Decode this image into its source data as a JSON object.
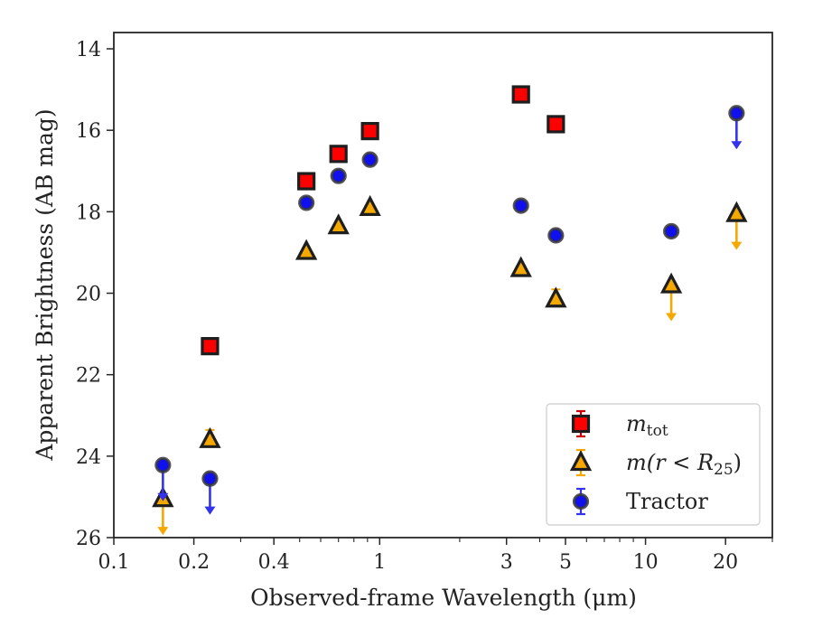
{
  "chart_data": {
    "type": "scatter",
    "xlabel": "Observed-frame Wavelength (μm)",
    "ylabel": "Apparent Brightness (AB mag)",
    "xscale": "log",
    "xlim": [
      0.1,
      30
    ],
    "ylim": [
      26,
      13.6
    ],
    "y_inverted": true,
    "x_ticks": [
      0.1,
      0.2,
      0.4,
      1,
      3,
      5,
      10,
      20
    ],
    "x_tick_labels": [
      "0.1",
      "0.2",
      "0.4",
      "1",
      "3",
      "5",
      "10",
      "20"
    ],
    "y_ticks": [
      14,
      16,
      18,
      20,
      22,
      24,
      26
    ],
    "y_tick_labels": [
      "14",
      "16",
      "18",
      "20",
      "22",
      "24",
      "26"
    ],
    "legend_position": "lower-right",
    "series": [
      {
        "name": "m_tot",
        "label_main": "m",
        "label_sub": "tot",
        "marker": "square",
        "color": "#ff0000",
        "errcolor": "#cc0000",
        "points": [
          {
            "x": 0.23,
            "y": 21.3,
            "upper_limit": false
          },
          {
            "x": 0.53,
            "y": 17.25,
            "upper_limit": false
          },
          {
            "x": 0.7,
            "y": 16.58,
            "upper_limit": false
          },
          {
            "x": 0.92,
            "y": 16.02,
            "upper_limit": false
          },
          {
            "x": 3.4,
            "y": 15.12,
            "upper_limit": false
          },
          {
            "x": 4.6,
            "y": 15.85,
            "upper_limit": false
          }
        ]
      },
      {
        "name": "m(r < R_25)",
        "label_main": "m(r < R",
        "label_sub": "25",
        "label_tail": ")",
        "marker": "triangle",
        "color": "#f5a800",
        "errcolor": "#f5a800",
        "points": [
          {
            "x": 0.153,
            "y": 25.05,
            "upper_limit": true
          },
          {
            "x": 0.23,
            "y": 23.6,
            "upper_limit": false
          },
          {
            "x": 0.53,
            "y": 18.98,
            "upper_limit": false
          },
          {
            "x": 0.7,
            "y": 18.35,
            "upper_limit": false
          },
          {
            "x": 0.92,
            "y": 17.9,
            "upper_limit": false
          },
          {
            "x": 3.4,
            "y": 19.4,
            "upper_limit": false
          },
          {
            "x": 4.6,
            "y": 20.15,
            "upper_limit": false
          },
          {
            "x": 12.5,
            "y": 19.8,
            "upper_limit": true
          },
          {
            "x": 22.0,
            "y": 18.05,
            "upper_limit": true
          }
        ]
      },
      {
        "name": "Tractor",
        "label_main": "Tractor",
        "marker": "circle",
        "color": "#1010ee",
        "errcolor": "#3333ee",
        "points": [
          {
            "x": 0.153,
            "y": 24.22,
            "upper_limit": true
          },
          {
            "x": 0.23,
            "y": 24.55,
            "upper_limit": true
          },
          {
            "x": 0.53,
            "y": 17.78,
            "upper_limit": false
          },
          {
            "x": 0.7,
            "y": 17.12,
            "upper_limit": false
          },
          {
            "x": 0.92,
            "y": 16.72,
            "upper_limit": false
          },
          {
            "x": 3.4,
            "y": 17.85,
            "upper_limit": false
          },
          {
            "x": 4.6,
            "y": 18.58,
            "upper_limit": false
          },
          {
            "x": 12.5,
            "y": 18.48,
            "upper_limit": false
          },
          {
            "x": 22.0,
            "y": 15.58,
            "upper_limit": true
          }
        ]
      }
    ]
  }
}
